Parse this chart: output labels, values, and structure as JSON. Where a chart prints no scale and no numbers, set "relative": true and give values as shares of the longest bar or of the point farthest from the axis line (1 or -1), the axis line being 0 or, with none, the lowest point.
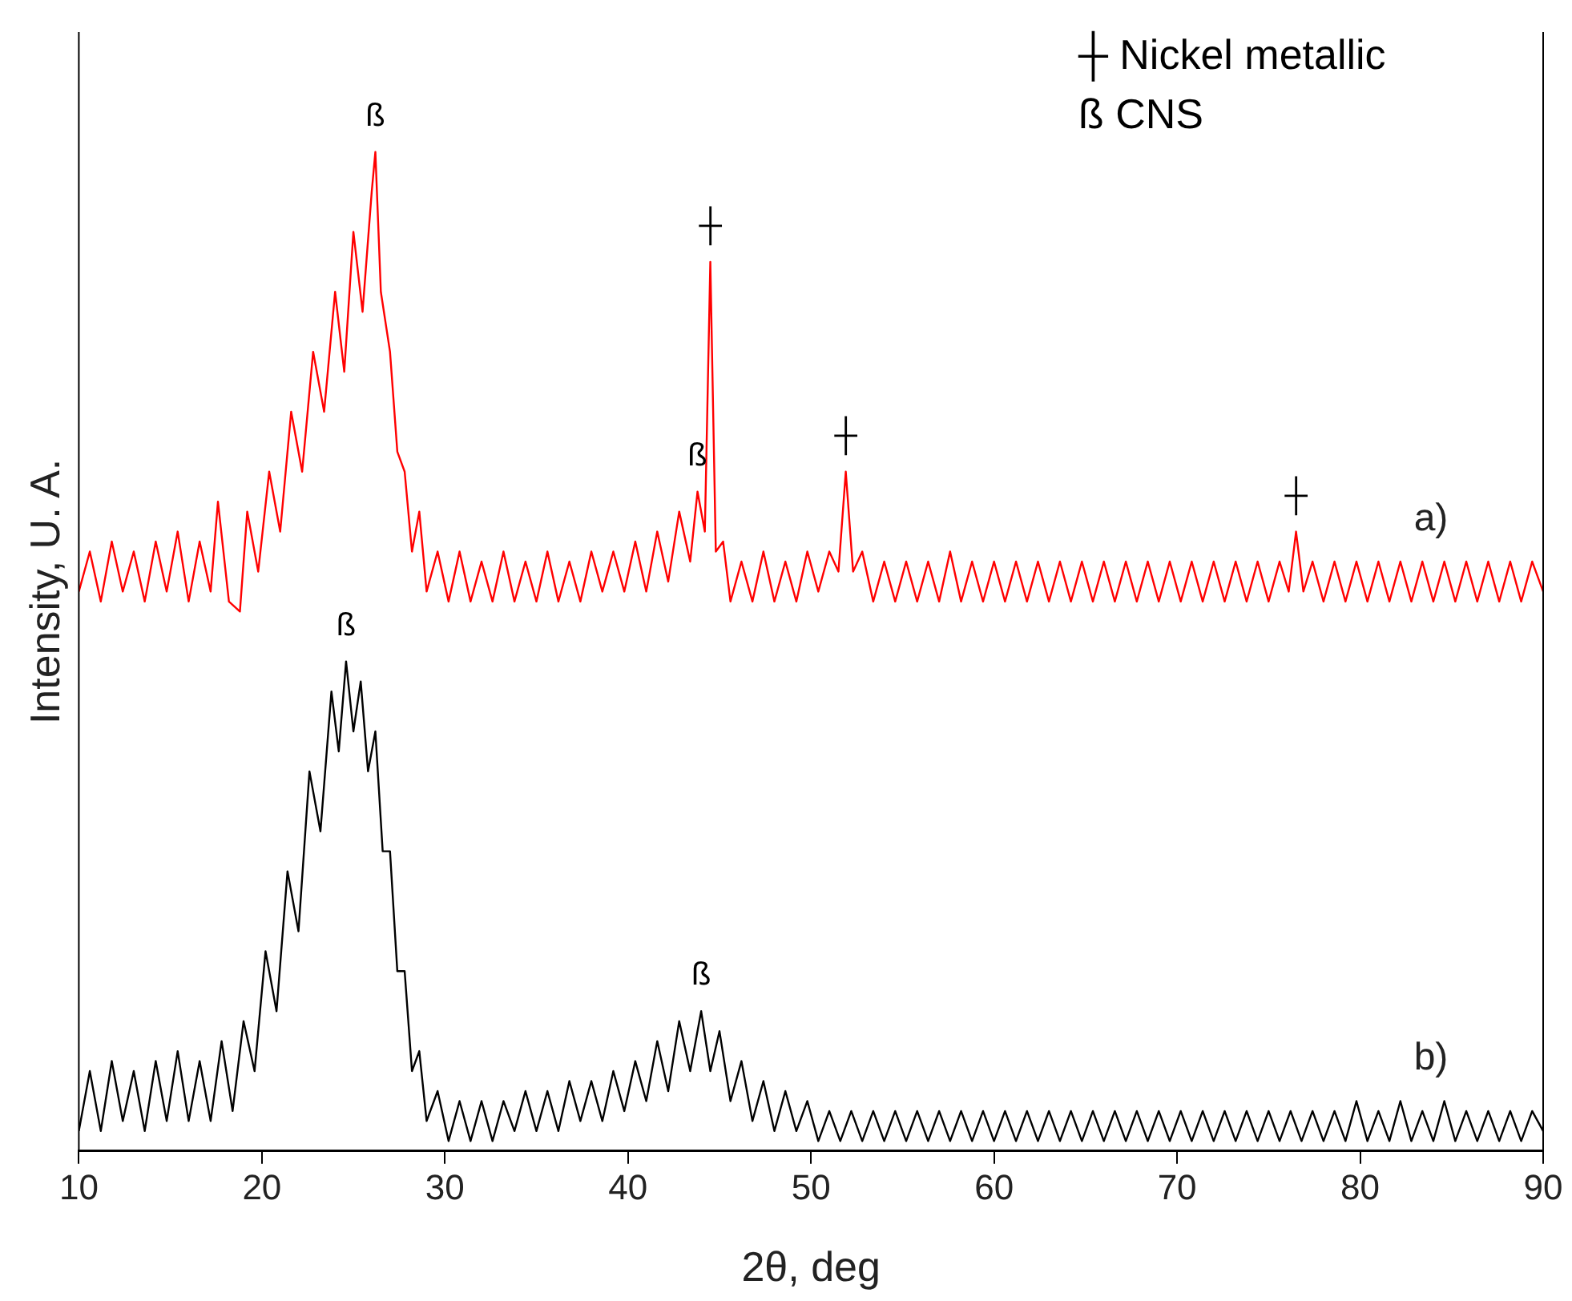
{
  "chart_data": {
    "type": "line",
    "relative": true,
    "xlabel": "2θ, deg",
    "ylabel": "Intensity, U. A.",
    "xlim": [
      10,
      90
    ],
    "xticks": [
      10,
      20,
      30,
      40,
      50,
      60,
      70,
      80,
      90
    ],
    "grid": false,
    "legend": false,
    "marker": "none",
    "line_style": "solid",
    "series": [
      {
        "name": "a)",
        "color": "#ff0000",
        "x": [
          10,
          10.6,
          11.2,
          11.8,
          12.4,
          13,
          13.6,
          14.2,
          14.8,
          15.4,
          16,
          16.6,
          17.2,
          17.6,
          18.2,
          18.8,
          19.2,
          19.8,
          20.4,
          21,
          21.6,
          22.2,
          22.8,
          23.4,
          24,
          24.5,
          25,
          25.5,
          26,
          26.2,
          26.5,
          27,
          27.4,
          27.8,
          28.2,
          28.6,
          29,
          29.6,
          30.2,
          30.8,
          31.4,
          32,
          32.6,
          33.2,
          33.8,
          34.4,
          35,
          35.6,
          36.2,
          36.8,
          37.4,
          38,
          38.6,
          39.2,
          39.8,
          40.4,
          41,
          41.6,
          42.2,
          42.8,
          43.4,
          43.8,
          44.2,
          44.5,
          44.8,
          45.2,
          45.6,
          46.2,
          46.8,
          47.4,
          48,
          48.6,
          49.2,
          49.8,
          50.4,
          51,
          51.5,
          51.9,
          52.3,
          52.8,
          53.4,
          54,
          54.6,
          55.2,
          55.8,
          56.4,
          57,
          57.6,
          58.2,
          58.8,
          59.4,
          60,
          60.6,
          61.2,
          61.8,
          62.4,
          63,
          63.6,
          64.2,
          64.8,
          65.4,
          66,
          66.6,
          67.2,
          67.8,
          68.4,
          69,
          69.6,
          70.2,
          70.8,
          71.4,
          72,
          72.6,
          73.2,
          73.8,
          74.4,
          75,
          75.6,
          76.1,
          76.5,
          76.9,
          77.4,
          78,
          78.6,
          79.2,
          79.8,
          80.4,
          81,
          81.6,
          82.2,
          82.8,
          83.4,
          84,
          84.6,
          85.2,
          85.8,
          86.4,
          87,
          87.6,
          88.2,
          88.8,
          89.4,
          90
        ],
        "values": [
          0.56,
          0.6,
          0.55,
          0.61,
          0.56,
          0.6,
          0.55,
          0.61,
          0.56,
          0.62,
          0.55,
          0.61,
          0.56,
          0.65,
          0.55,
          0.54,
          0.64,
          0.58,
          0.68,
          0.62,
          0.74,
          0.68,
          0.8,
          0.74,
          0.86,
          0.78,
          0.92,
          0.84,
          0.96,
          1.0,
          0.86,
          0.8,
          0.7,
          0.68,
          0.6,
          0.64,
          0.56,
          0.6,
          0.55,
          0.6,
          0.55,
          0.59,
          0.55,
          0.6,
          0.55,
          0.59,
          0.55,
          0.6,
          0.55,
          0.59,
          0.55,
          0.6,
          0.56,
          0.6,
          0.56,
          0.61,
          0.56,
          0.62,
          0.57,
          0.64,
          0.59,
          0.66,
          0.62,
          0.89,
          0.6,
          0.61,
          0.55,
          0.59,
          0.55,
          0.6,
          0.55,
          0.59,
          0.55,
          0.6,
          0.56,
          0.6,
          0.58,
          0.68,
          0.58,
          0.6,
          0.55,
          0.59,
          0.55,
          0.59,
          0.55,
          0.59,
          0.55,
          0.6,
          0.55,
          0.59,
          0.55,
          0.59,
          0.55,
          0.59,
          0.55,
          0.59,
          0.55,
          0.59,
          0.55,
          0.59,
          0.55,
          0.59,
          0.55,
          0.59,
          0.55,
          0.59,
          0.55,
          0.59,
          0.55,
          0.59,
          0.55,
          0.59,
          0.55,
          0.59,
          0.55,
          0.59,
          0.55,
          0.59,
          0.56,
          0.62,
          0.56,
          0.59,
          0.55,
          0.59,
          0.55,
          0.59,
          0.55,
          0.59,
          0.55,
          0.59,
          0.55,
          0.59,
          0.55,
          0.59,
          0.55,
          0.59,
          0.55,
          0.59,
          0.55,
          0.59,
          0.55,
          0.59,
          0.56
        ]
      },
      {
        "name": "b)",
        "color": "#000000",
        "x": [
          10,
          10.6,
          11.2,
          11.8,
          12.4,
          13,
          13.6,
          14.2,
          14.8,
          15.4,
          16,
          16.6,
          17.2,
          17.8,
          18.4,
          19,
          19.6,
          20.2,
          20.8,
          21.4,
          22,
          22.6,
          23.2,
          23.8,
          24.2,
          24.6,
          25,
          25.4,
          25.8,
          26.2,
          26.6,
          27,
          27.4,
          27.8,
          28.2,
          28.6,
          29,
          29.6,
          30.2,
          30.8,
          31.4,
          32,
          32.6,
          33.2,
          33.8,
          34.4,
          35,
          35.6,
          36.2,
          36.8,
          37.4,
          38,
          38.6,
          39.2,
          39.8,
          40.4,
          41,
          41.6,
          42.2,
          42.8,
          43.4,
          44,
          44.5,
          45,
          45.6,
          46.2,
          46.8,
          47.4,
          48,
          48.6,
          49.2,
          49.8,
          50.4,
          51,
          51.6,
          52.2,
          52.8,
          53.4,
          54,
          54.6,
          55.2,
          55.8,
          56.4,
          57,
          57.6,
          58.2,
          58.8,
          59.4,
          60,
          60.6,
          61.2,
          61.8,
          62.4,
          63,
          63.6,
          64.2,
          64.8,
          65.4,
          66,
          66.6,
          67.2,
          67.8,
          68.4,
          69,
          69.6,
          70.2,
          70.8,
          71.4,
          72,
          72.6,
          73.2,
          73.8,
          74.4,
          75,
          75.6,
          76.2,
          76.8,
          77.4,
          78,
          78.6,
          79.2,
          79.8,
          80.4,
          81,
          81.6,
          82.2,
          82.8,
          83.4,
          84,
          84.6,
          85.2,
          85.8,
          86.4,
          87,
          87.6,
          88.2,
          88.8,
          89.4,
          90
        ],
        "values": [
          0.02,
          0.08,
          0.02,
          0.09,
          0.03,
          0.08,
          0.02,
          0.09,
          0.03,
          0.1,
          0.03,
          0.09,
          0.03,
          0.11,
          0.04,
          0.13,
          0.08,
          0.2,
          0.14,
          0.28,
          0.22,
          0.38,
          0.32,
          0.46,
          0.4,
          0.49,
          0.42,
          0.47,
          0.38,
          0.42,
          0.3,
          0.3,
          0.18,
          0.18,
          0.08,
          0.1,
          0.03,
          0.06,
          0.01,
          0.05,
          0.01,
          0.05,
          0.01,
          0.05,
          0.02,
          0.06,
          0.02,
          0.06,
          0.02,
          0.07,
          0.03,
          0.07,
          0.03,
          0.08,
          0.04,
          0.09,
          0.05,
          0.11,
          0.06,
          0.13,
          0.08,
          0.14,
          0.08,
          0.12,
          0.05,
          0.09,
          0.03,
          0.07,
          0.02,
          0.06,
          0.02,
          0.05,
          0.01,
          0.04,
          0.01,
          0.04,
          0.01,
          0.04,
          0.01,
          0.04,
          0.01,
          0.04,
          0.01,
          0.04,
          0.01,
          0.04,
          0.01,
          0.04,
          0.01,
          0.04,
          0.01,
          0.04,
          0.01,
          0.04,
          0.01,
          0.04,
          0.01,
          0.04,
          0.01,
          0.04,
          0.01,
          0.04,
          0.01,
          0.04,
          0.01,
          0.04,
          0.01,
          0.04,
          0.01,
          0.04,
          0.01,
          0.04,
          0.01,
          0.04,
          0.01,
          0.04,
          0.01,
          0.04,
          0.01,
          0.04,
          0.01,
          0.05,
          0.01,
          0.04,
          0.01,
          0.05,
          0.01,
          0.04,
          0.01,
          0.05,
          0.01,
          0.04,
          0.01,
          0.04,
          0.01,
          0.04,
          0.01,
          0.04,
          0.02
        ]
      }
    ],
    "annotations": [
      "┼ Nickel metallic",
      "ß CNS",
      {
        "text": "ß",
        "x": 26.2,
        "y": 1.0
      },
      {
        "text": "ß",
        "x": 43.8,
        "y": 0.66
      },
      {
        "text": "ß",
        "x": 24.6,
        "y": 0.49
      },
      {
        "text": "ß",
        "x": 44,
        "y": 0.14
      },
      {
        "text": "┼",
        "x": 44.5,
        "y": 0.89
      },
      {
        "text": "┼",
        "x": 51.9,
        "y": 0.68
      },
      {
        "text": "┼",
        "x": 76.5,
        "y": 0.62
      }
    ]
  }
}
